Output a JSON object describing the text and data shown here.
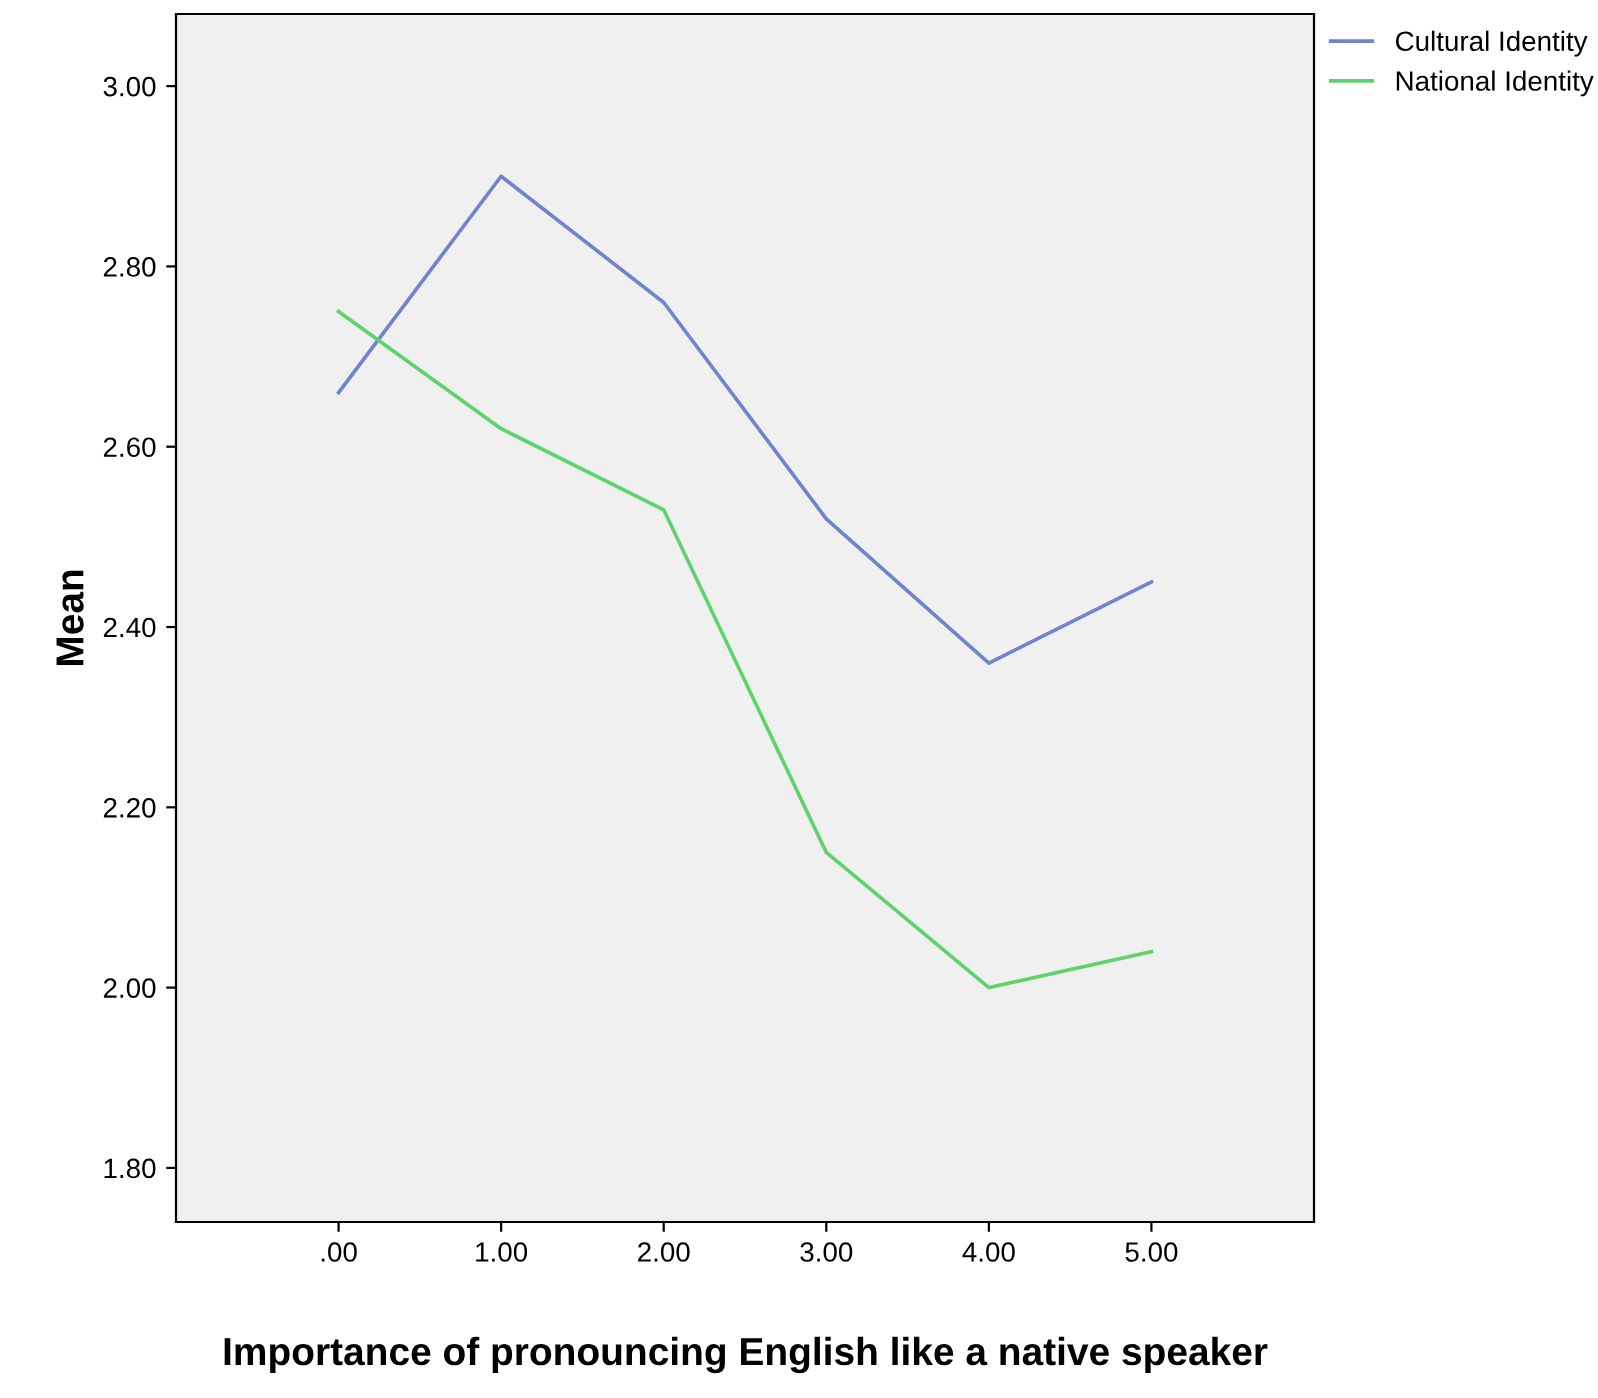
{
  "chart_data": {
    "type": "line",
    "xlabel": "Importance of pronouncing English like a native speaker",
    "ylabel": "Mean",
    "categories": [
      ".00",
      "1.00",
      "2.00",
      "3.00",
      "4.00",
      "5.00"
    ],
    "series": [
      {
        "name": "Cultural Identity",
        "color": "#7083cc",
        "values": [
          2.66,
          2.9,
          2.76,
          2.52,
          2.36,
          2.45
        ]
      },
      {
        "name": "National Identity",
        "color": "#5fd36b",
        "values": [
          2.75,
          2.62,
          2.53,
          2.15,
          2.0,
          2.04
        ]
      }
    ],
    "ylim": [
      1.74,
      3.08
    ],
    "yticks": [
      {
        "value": 1.8,
        "label": "1.80"
      },
      {
        "value": 2.0,
        "label": "2.00"
      },
      {
        "value": 2.2,
        "label": "2.20"
      },
      {
        "value": 2.4,
        "label": "2.40"
      },
      {
        "value": 2.6,
        "label": "2.60"
      },
      {
        "value": 2.8,
        "label": "2.80"
      },
      {
        "value": 3.0,
        "label": "3.00"
      }
    ],
    "grid": false,
    "legend": "top right",
    "marker": "none",
    "line_style": "solid"
  }
}
